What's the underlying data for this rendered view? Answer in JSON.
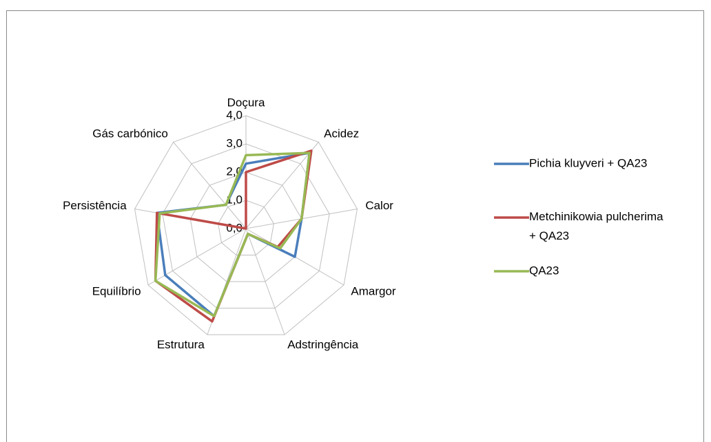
{
  "chart_data": {
    "type": "radar",
    "categories": [
      "Doçura",
      "Acidez",
      "Calor",
      "Amargor",
      "Adstringência",
      "Estrutura",
      "Equilíbrio",
      "Persistência",
      "Gás carbónico"
    ],
    "series": [
      {
        "name": "Pichia kluyveri + QA23",
        "color": "#4a7ebb",
        "values": [
          2.3,
          3.5,
          2.0,
          2.0,
          0.2,
          3.3,
          3.3,
          3.2,
          1.1
        ]
      },
      {
        "name": "Metchinikowia pulcherima + QA23",
        "color": "#be4b48",
        "values": [
          2.0,
          3.6,
          2.0,
          1.3,
          0.2,
          3.5,
          3.7,
          3.2,
          0.0
        ]
      },
      {
        "name": "QA23",
        "color": "#98b954",
        "values": [
          2.6,
          3.5,
          2.0,
          1.4,
          0.2,
          3.3,
          3.7,
          3.1,
          1.1
        ]
      }
    ],
    "ylim": [
      0,
      4
    ],
    "yticks": [
      {
        "value": 0,
        "label": "0,0"
      },
      {
        "value": 1,
        "label": "1,0"
      },
      {
        "value": 2,
        "label": "2,0"
      },
      {
        "value": 3,
        "label": "3,0"
      },
      {
        "value": 4,
        "label": "4,0"
      }
    ],
    "grid": true,
    "legend": "right"
  }
}
